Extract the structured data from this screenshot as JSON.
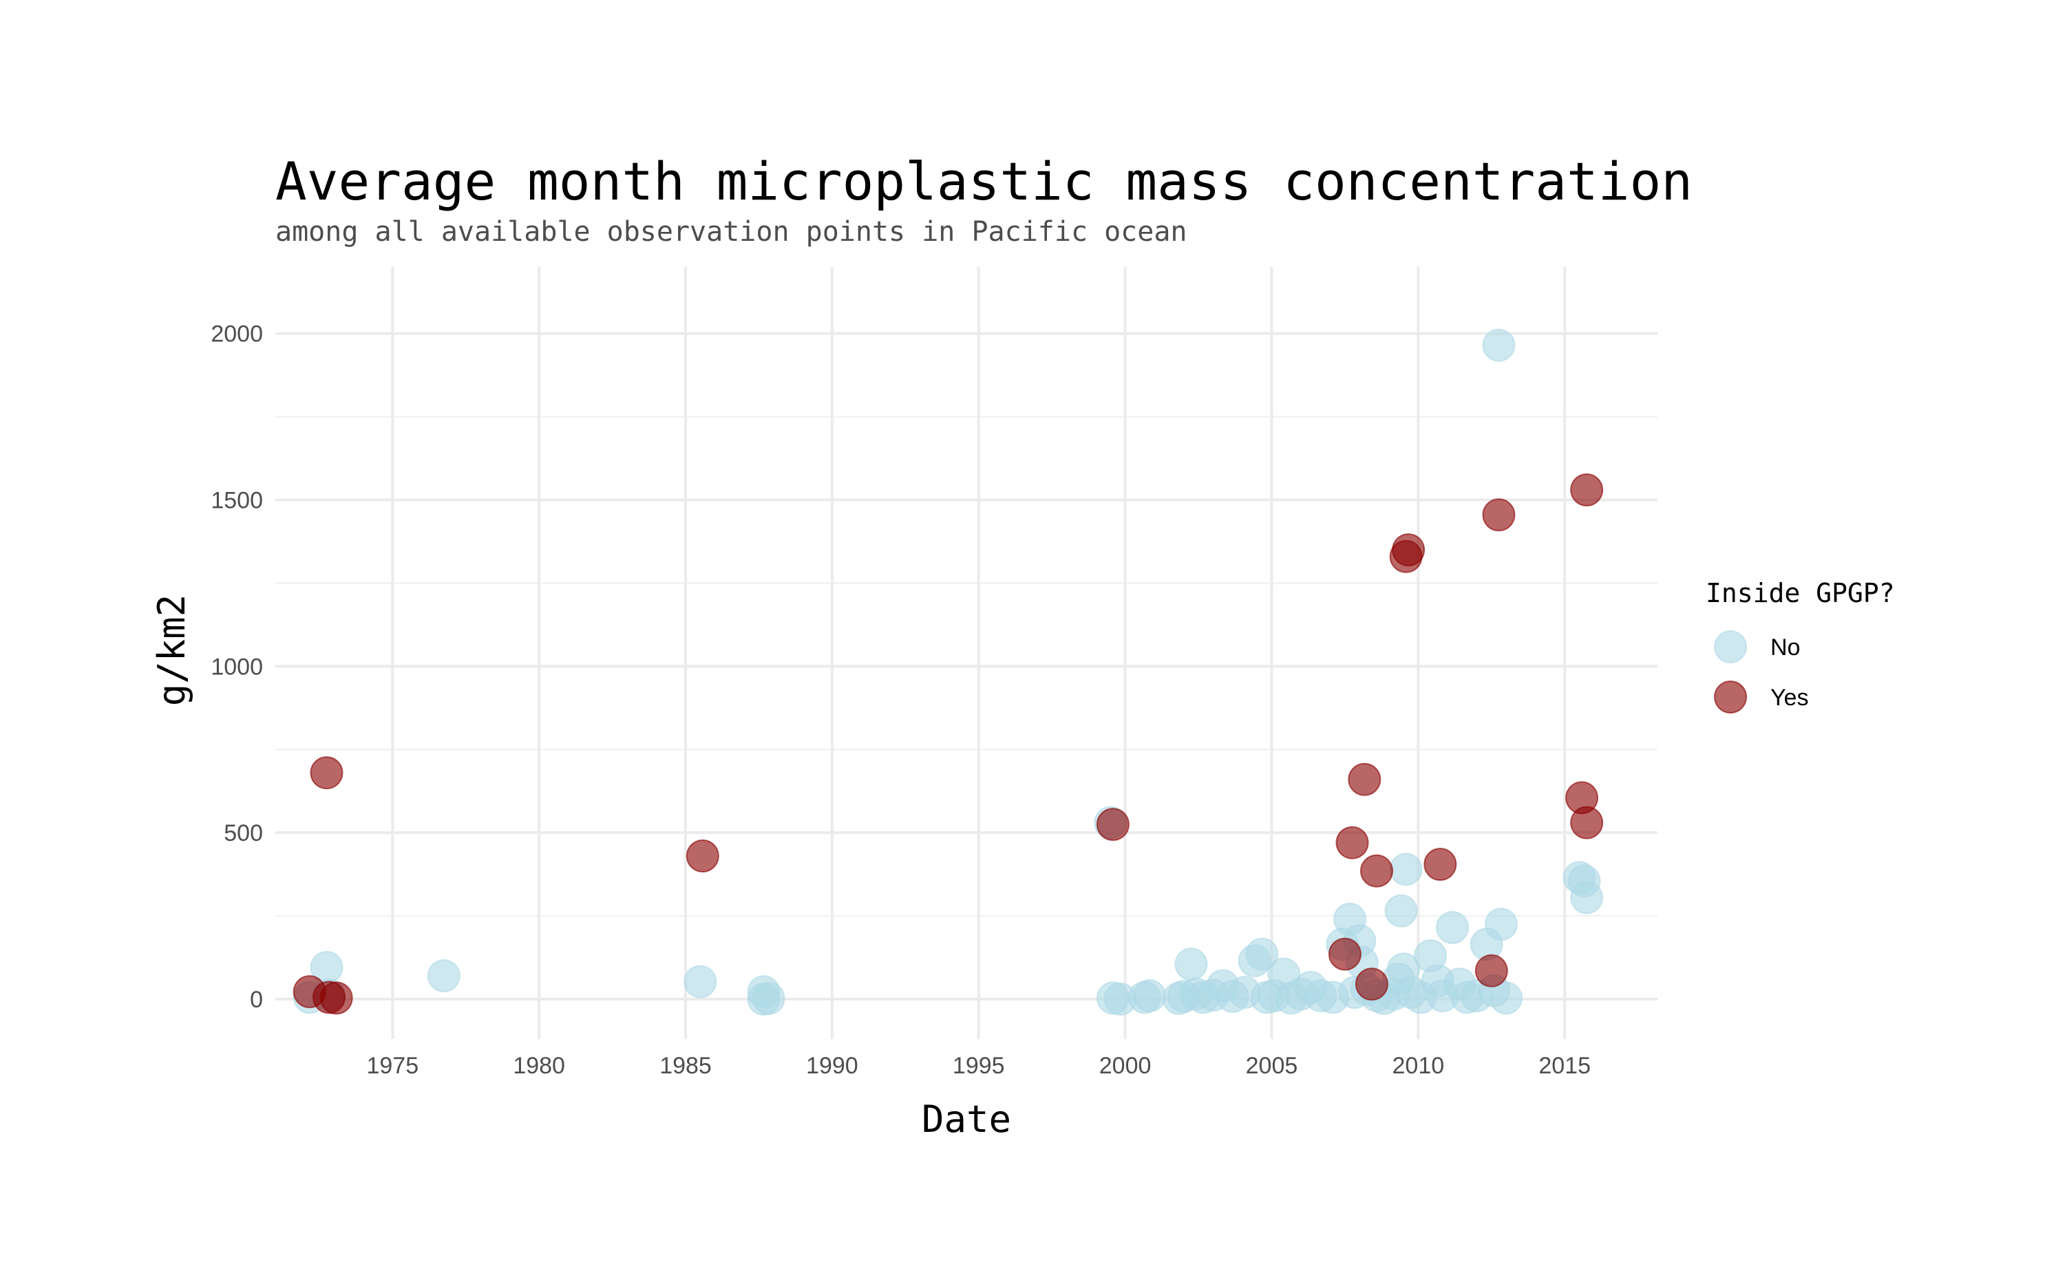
{
  "chart_data": {
    "type": "scatter",
    "title": "Average month microplastic mass concentration",
    "subtitle": "among all available observation points in Pacific ocean",
    "xlabel": "Date",
    "ylabel": "g/km2",
    "xlim": [
      "1971-01-01",
      "2018-03-01"
    ],
    "ylim": [
      -120,
      2200
    ],
    "x_ticks": [
      "1975",
      "1980",
      "1985",
      "1990",
      "1995",
      "2000",
      "2005",
      "2010",
      "2015"
    ],
    "y_ticks": [
      0,
      500,
      1000,
      1500,
      2000
    ],
    "y_minor_ticks": [
      250,
      750,
      1250,
      1750
    ],
    "grid": true,
    "legend": {
      "title": "Inside GPGP?",
      "position": "right",
      "entries": [
        {
          "label": "No",
          "color": "#add8e6"
        },
        {
          "label": "Yes",
          "color": "#8b0000"
        }
      ]
    },
    "point_opacity": 0.6,
    "series": [
      {
        "name": "No",
        "color": "#add8e6",
        "points": [
          {
            "x": "1972-03",
            "y": 5
          },
          {
            "x": "1972-10",
            "y": 95
          },
          {
            "x": "1972-11",
            "y": 12
          },
          {
            "x": "1976-10",
            "y": 70
          },
          {
            "x": "1985-07",
            "y": 52
          },
          {
            "x": "1987-09",
            "y": 22
          },
          {
            "x": "1987-09",
            "y": 0
          },
          {
            "x": "1987-11",
            "y": 2
          },
          {
            "x": "1999-07",
            "y": 530
          },
          {
            "x": "1999-08",
            "y": 3
          },
          {
            "x": "1999-11",
            "y": 0
          },
          {
            "x": "2000-09",
            "y": 5
          },
          {
            "x": "2000-11",
            "y": 10
          },
          {
            "x": "2001-11",
            "y": 2
          },
          {
            "x": "2002-01",
            "y": 8
          },
          {
            "x": "2002-04",
            "y": 105
          },
          {
            "x": "2002-06",
            "y": 15
          },
          {
            "x": "2002-09",
            "y": 5
          },
          {
            "x": "2003-01",
            "y": 12
          },
          {
            "x": "2003-05",
            "y": 40
          },
          {
            "x": "2003-09",
            "y": 8
          },
          {
            "x": "2004-02",
            "y": 20
          },
          {
            "x": "2004-06",
            "y": 115
          },
          {
            "x": "2004-09",
            "y": 135
          },
          {
            "x": "2004-11",
            "y": 5
          },
          {
            "x": "2005-02",
            "y": 10
          },
          {
            "x": "2005-06",
            "y": 75
          },
          {
            "x": "2005-09",
            "y": 3
          },
          {
            "x": "2006-01",
            "y": 15
          },
          {
            "x": "2006-05",
            "y": 35
          },
          {
            "x": "2006-09",
            "y": 10
          },
          {
            "x": "2007-02",
            "y": 5
          },
          {
            "x": "2007-06",
            "y": 165
          },
          {
            "x": "2007-09",
            "y": 240
          },
          {
            "x": "2007-11",
            "y": 20
          },
          {
            "x": "2008-01",
            "y": 175
          },
          {
            "x": "2008-02",
            "y": 110
          },
          {
            "x": "2008-04",
            "y": 30
          },
          {
            "x": "2008-08",
            "y": 10
          },
          {
            "x": "2008-11",
            "y": 2
          },
          {
            "x": "2009-03",
            "y": 15
          },
          {
            "x": "2009-05",
            "y": 60
          },
          {
            "x": "2009-06",
            "y": 265
          },
          {
            "x": "2009-07",
            "y": 90
          },
          {
            "x": "2009-08",
            "y": 390
          },
          {
            "x": "2009-10",
            "y": 20
          },
          {
            "x": "2010-02",
            "y": 5
          },
          {
            "x": "2010-06",
            "y": 130
          },
          {
            "x": "2010-09",
            "y": 55
          },
          {
            "x": "2010-11",
            "y": 10
          },
          {
            "x": "2011-03",
            "y": 215
          },
          {
            "x": "2011-06",
            "y": 45
          },
          {
            "x": "2011-09",
            "y": 5
          },
          {
            "x": "2012-01",
            "y": 10
          },
          {
            "x": "2012-05",
            "y": 165
          },
          {
            "x": "2012-08",
            "y": 25
          },
          {
            "x": "2012-10",
            "y": 1965
          },
          {
            "x": "2012-11",
            "y": 225
          },
          {
            "x": "2013-01",
            "y": 3
          },
          {
            "x": "2015-07",
            "y": 365
          },
          {
            "x": "2015-09",
            "y": 355
          },
          {
            "x": "2015-10",
            "y": 305
          }
        ]
      },
      {
        "name": "Yes",
        "color": "#8b0000",
        "points": [
          {
            "x": "1972-03",
            "y": 22
          },
          {
            "x": "1972-10",
            "y": 680
          },
          {
            "x": "1972-11",
            "y": 5
          },
          {
            "x": "1973-02",
            "y": 3
          },
          {
            "x": "1985-08",
            "y": 430
          },
          {
            "x": "1999-08",
            "y": 525
          },
          {
            "x": "2007-07",
            "y": 135
          },
          {
            "x": "2007-10",
            "y": 470
          },
          {
            "x": "2008-03",
            "y": 660
          },
          {
            "x": "2008-06",
            "y": 45
          },
          {
            "x": "2008-08",
            "y": 385
          },
          {
            "x": "2009-08",
            "y": 1330
          },
          {
            "x": "2009-09",
            "y": 1350
          },
          {
            "x": "2010-10",
            "y": 405
          },
          {
            "x": "2012-07",
            "y": 85
          },
          {
            "x": "2012-10",
            "y": 1455
          },
          {
            "x": "2015-08",
            "y": 605
          },
          {
            "x": "2015-10",
            "y": 530
          },
          {
            "x": "2015-10",
            "y": 1530
          }
        ]
      }
    ]
  }
}
